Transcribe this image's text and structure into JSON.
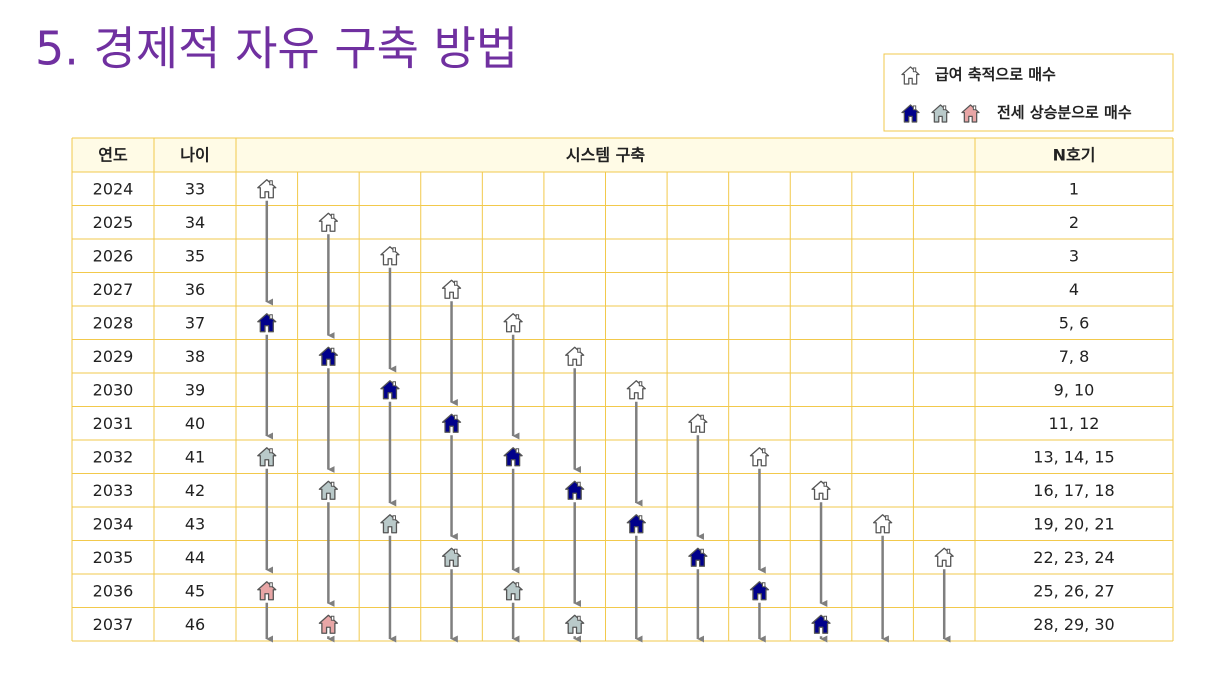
{
  "title": "5. 경제적 자유 구축 방법",
  "legend": [
    "급여 축적으로 매수",
    "전세 상승분으로 매수"
  ],
  "table": {
    "headers": [
      "연도",
      "나이",
      "시스템 구축",
      "N호기"
    ],
    "rows": [
      [
        "2024",
        "33",
        "1"
      ],
      [
        "2025",
        "34",
        "2"
      ],
      [
        "2026",
        "35",
        "3"
      ],
      [
        "2027",
        "36",
        "4"
      ],
      [
        "2028",
        "37",
        "5, 6"
      ],
      [
        "2029",
        "38",
        "7, 8"
      ],
      [
        "2030",
        "39",
        "9, 10"
      ],
      [
        "2031",
        "40",
        "11, 12"
      ],
      [
        "2032",
        "41",
        "13, 14, 15"
      ],
      [
        "2033",
        "42",
        "16, 17, 18"
      ],
      [
        "2034",
        "43",
        "19, 20, 21"
      ],
      [
        "2035",
        "44",
        "22, 23, 24"
      ],
      [
        "2036",
        "45",
        "25, 26, 27"
      ],
      [
        "2037",
        "46",
        "28, 29, 30"
      ]
    ]
  }
}
